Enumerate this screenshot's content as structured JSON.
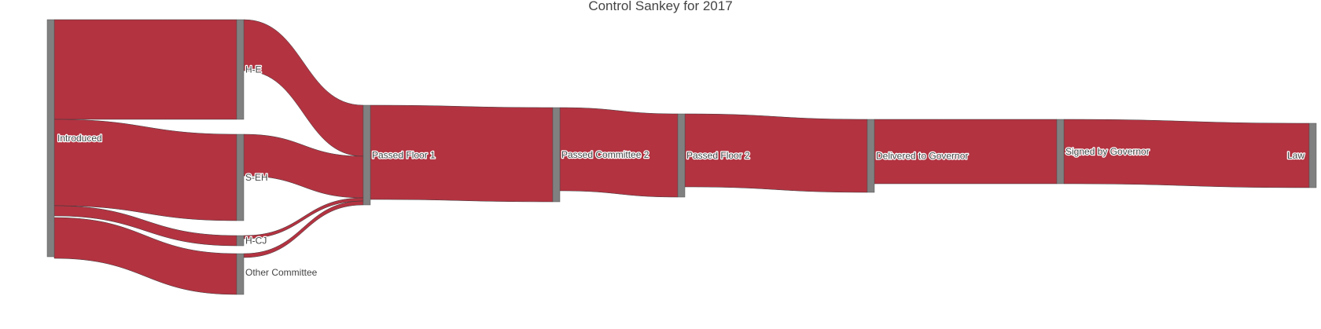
{
  "chart_data": {
    "type": "sankey",
    "title": "Control Sankey for 2017",
    "colors": {
      "link": "#b33341",
      "node": "#808080",
      "text": "#444444"
    },
    "nodes": [
      {
        "id": "introduced",
        "label": "Introduced",
        "stage": 0
      },
      {
        "id": "h-e",
        "label": "H-E",
        "stage": 1
      },
      {
        "id": "s-eh",
        "label": "S-EH",
        "stage": 1
      },
      {
        "id": "h-cj",
        "label": "H-CJ",
        "stage": 1
      },
      {
        "id": "other-committee",
        "label": "Other Committee",
        "stage": 1
      },
      {
        "id": "passed-floor-1",
        "label": "Passed Floor 1",
        "stage": 2
      },
      {
        "id": "passed-committee-2",
        "label": "Passed Committee 2",
        "stage": 3
      },
      {
        "id": "passed-floor-2",
        "label": "Passed Floor 2",
        "stage": 4
      },
      {
        "id": "delivered-to-governor",
        "label": "Delivered to Governor",
        "stage": 5
      },
      {
        "id": "signed-by-governor",
        "label": "Signed by Governor",
        "stage": 6
      },
      {
        "id": "law",
        "label": "Law",
        "stage": 7
      }
    ],
    "links": [
      {
        "source": "introduced",
        "target": "h-e",
        "value": 127
      },
      {
        "source": "introduced",
        "target": "s-eh",
        "value": 110
      },
      {
        "source": "introduced",
        "target": "h-cj",
        "value": 13
      },
      {
        "source": "introduced",
        "target": "other-committee",
        "value": 52
      },
      {
        "source": "h-e",
        "target": "passed-floor-1",
        "value": 65
      },
      {
        "source": "s-eh",
        "target": "passed-floor-1",
        "value": 53
      },
      {
        "source": "h-cj",
        "target": "passed-floor-1",
        "value": 4
      },
      {
        "source": "other-committee",
        "target": "passed-floor-1",
        "value": 5
      },
      {
        "source": "passed-floor-1",
        "target": "passed-committee-2",
        "value": 120
      },
      {
        "source": "passed-committee-2",
        "target": "passed-floor-2",
        "value": 106
      },
      {
        "source": "passed-floor-2",
        "target": "delivered-to-governor",
        "value": 93
      },
      {
        "source": "delivered-to-governor",
        "target": "signed-by-governor",
        "value": 82
      },
      {
        "source": "signed-by-governor",
        "target": "law",
        "value": 82
      }
    ]
  }
}
